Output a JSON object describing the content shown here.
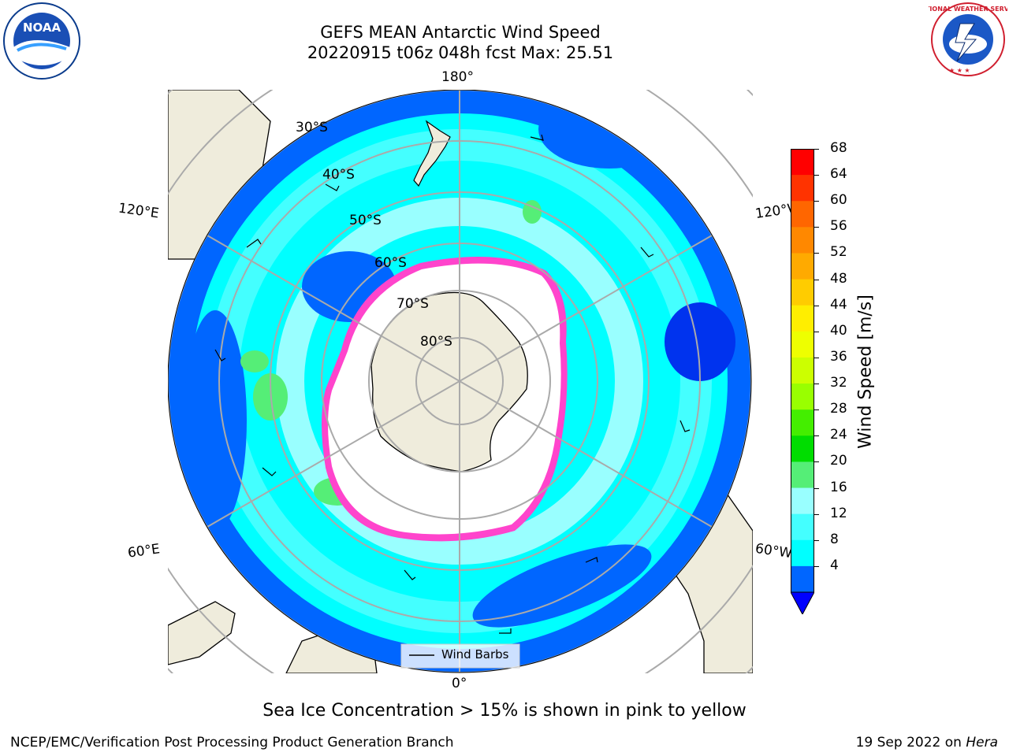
{
  "title": {
    "line1": "GEFS MEAN Antarctic Wind Speed",
    "line2": "20220915 t06z 048h fcst   Max: 25.51"
  },
  "logos": {
    "left": "noara-logo",
    "left_text": "NOAA",
    "right": "nws-logo",
    "right_text": "NATIONAL WEATHER SERVICE"
  },
  "map": {
    "longitude_labels": {
      "top": "180°",
      "bottom": "0°",
      "upper_left": "120°E",
      "upper_right": "120°W",
      "lower_left": "60°E",
      "lower_right": "60°W"
    },
    "latitude_labels": [
      "30°S",
      "40°S",
      "50°S",
      "60°S",
      "70°S",
      "80°S"
    ],
    "legend_label": "Wind Barbs",
    "colors": {
      "land": "#efecdc",
      "ocean_low": "#0066ff",
      "ocean_mid": "#00ffff",
      "ocean_high": "#99ffff",
      "wind_green": "#55ee77",
      "ice": "#ff44cc"
    }
  },
  "colorbar": {
    "label": "Wind Speed [m/s]",
    "ticks": [
      "68",
      "64",
      "60",
      "56",
      "52",
      "48",
      "44",
      "40",
      "36",
      "32",
      "28",
      "24",
      "20",
      "16",
      "12",
      "8",
      "4"
    ],
    "colors": [
      "#ff0000",
      "#ff3300",
      "#ff6600",
      "#ff8800",
      "#ffaa00",
      "#ffcc00",
      "#ffee00",
      "#eeff00",
      "#ccff00",
      "#99ff00",
      "#44ee00",
      "#00dd00",
      "#55ee77",
      "#99ffff",
      "#44ffff",
      "#00ffff",
      "#0066ff"
    ],
    "extend_color": "#0000ff"
  },
  "chart_data": {
    "type": "heatmap",
    "title": "GEFS MEAN Antarctic Wind Speed",
    "subtitle": "20220915 t06z 048h fcst   Max: 25.51",
    "variable": "Wind Speed [m/s]",
    "max_value": 25.51,
    "colorbar_range": [
      4,
      68
    ],
    "colorbar_step": 4
  },
  "note": "Sea Ice Concentration > 15% is shown in pink to yellow",
  "footer": {
    "left": "NCEP/EMC/Verification Post Processing Product Generation Branch",
    "right_date": "19 Sep 2022 on ",
    "right_machine": "Hera"
  }
}
